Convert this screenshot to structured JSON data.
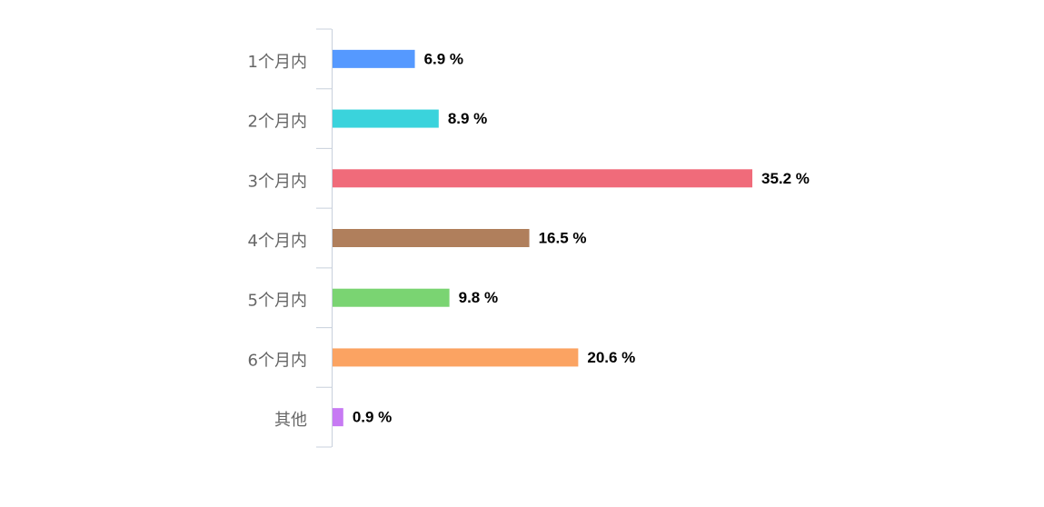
{
  "chart_data": {
    "type": "bar",
    "orientation": "horizontal",
    "categories": [
      "1个月内",
      "2个月内",
      "3个月内",
      "4个月内",
      "5个月内",
      "6个月内",
      "其他"
    ],
    "values": [
      6.9,
      8.9,
      35.2,
      16.5,
      9.8,
      20.6,
      0.9
    ],
    "value_labels": [
      "6.9 %",
      "8.9 %",
      "35.2 %",
      "16.5 %",
      "9.8 %",
      "20.6 %",
      "0.9 %"
    ],
    "colors": [
      "#5599ff",
      "#3ad3dc",
      "#f06b7a",
      "#b07f5c",
      "#7ad472",
      "#fba362",
      "#c77af3"
    ]
  }
}
